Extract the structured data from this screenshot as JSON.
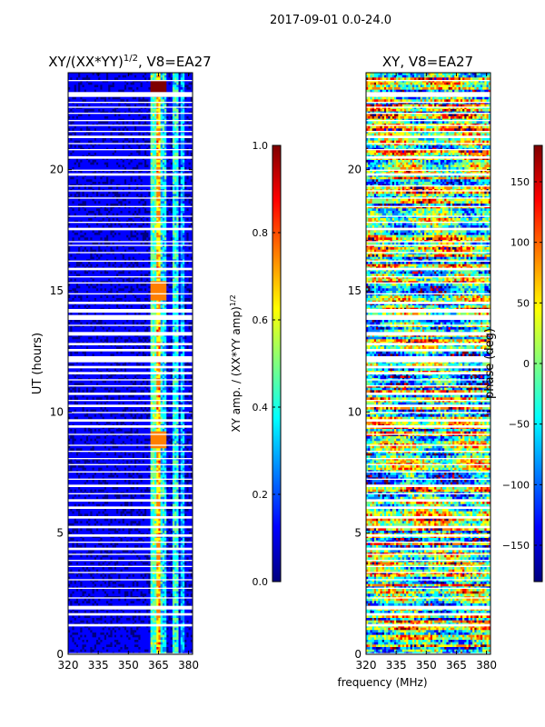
{
  "suptitle": "2017-09-01 0.0-24.0",
  "shared_xlabel": "frequency (MHz)",
  "colormap": "jet",
  "jet_colors": [
    "#00007f",
    "#0000ff",
    "#007fff",
    "#00ffff",
    "#7fff7f",
    "#ffff00",
    "#ff7f00",
    "#ff0000",
    "#7f0000"
  ],
  "gap_color": "#ffffff",
  "chart_data": [
    {
      "type": "heatmap",
      "title_main": "XY/(XX*YY)",
      "title_sup": "1/2",
      "title_tail": ", V8=EA27",
      "ylabel": "UT (hours)",
      "xlim": [
        320,
        382
      ],
      "ylim": [
        0,
        24
      ],
      "xticks": [
        320,
        335,
        350,
        365,
        380
      ],
      "yticks": [
        0,
        5,
        10,
        15,
        20
      ],
      "colorbar": {
        "label_main": "XY amp. / (XX*YY amp)",
        "label_sup": "1/2",
        "range": [
          0.0,
          1.0
        ],
        "ticks": [
          "0.0",
          "0.2",
          "0.4",
          "0.6",
          "0.8",
          "1.0"
        ],
        "tick_values": [
          0.0,
          0.2,
          0.4,
          0.6,
          0.8,
          1.0
        ]
      },
      "description_values": {
        "background_level": 0.05,
        "bright_bands_mhz": [
          [
            361,
            364
          ],
          [
            364,
            366
          ],
          [
            366,
            369
          ],
          [
            372,
            375
          ],
          [
            376,
            378
          ]
        ],
        "band_levels": [
          0.45,
          0.7,
          0.35,
          0.4,
          0.3
        ],
        "peak_levels": [
          [
            23.4,
            0.95
          ],
          [
            15.0,
            0.8
          ],
          [
            8.8,
            0.75
          ]
        ]
      }
    },
    {
      "type": "heatmap",
      "title": "XY, V8=EA27",
      "xlim": [
        320,
        382
      ],
      "ylim": [
        0,
        24
      ],
      "xticks": [
        320,
        335,
        350,
        365,
        380
      ],
      "yticks": [
        0,
        5,
        10,
        15,
        20
      ],
      "colorbar": {
        "label": "phase (deg)",
        "range": [
          -180,
          180
        ],
        "ticks": [
          "−150",
          "−100",
          "−50",
          "0",
          "50",
          "100",
          "150"
        ],
        "tick_values": [
          -150,
          -100,
          -50,
          0,
          50,
          100,
          150
        ]
      },
      "description_values": {
        "phase_distribution": "random across full range"
      }
    }
  ],
  "flagged_gaps_hours": [
    [
      0.0,
      0.05
    ],
    [
      1.15,
      1.25
    ],
    [
      1.6,
      1.7
    ],
    [
      1.85,
      2.0
    ],
    [
      2.3,
      2.35
    ],
    [
      2.7,
      2.75
    ],
    [
      3.05,
      3.1
    ],
    [
      3.35,
      3.4
    ],
    [
      3.6,
      3.65
    ],
    [
      3.85,
      3.9
    ],
    [
      4.1,
      4.15
    ],
    [
      4.3,
      4.4
    ],
    [
      4.6,
      4.65
    ],
    [
      4.85,
      4.95
    ],
    [
      5.2,
      5.3
    ],
    [
      5.6,
      5.7
    ],
    [
      6.0,
      6.1
    ],
    [
      6.3,
      6.4
    ],
    [
      6.6,
      6.65
    ],
    [
      6.9,
      7.0
    ],
    [
      7.2,
      7.25
    ],
    [
      7.5,
      7.55
    ],
    [
      7.8,
      7.85
    ],
    [
      8.05,
      8.1
    ],
    [
      8.35,
      8.4
    ],
    [
      8.6,
      8.65
    ],
    [
      9.05,
      9.1
    ],
    [
      9.35,
      9.45
    ],
    [
      9.6,
      9.7
    ],
    [
      9.95,
      10.0
    ],
    [
      10.2,
      10.3
    ],
    [
      10.45,
      10.5
    ],
    [
      10.7,
      10.8
    ],
    [
      11.05,
      11.1
    ],
    [
      11.3,
      11.35
    ],
    [
      11.55,
      11.65
    ],
    [
      11.8,
      11.9
    ],
    [
      12.05,
      12.3
    ],
    [
      12.5,
      12.6
    ],
    [
      12.75,
      12.85
    ],
    [
      13.15,
      13.3
    ],
    [
      13.55,
      13.6
    ],
    [
      13.8,
      14.0
    ],
    [
      14.1,
      14.25
    ],
    [
      14.45,
      14.55
    ],
    [
      14.85,
      14.9
    ],
    [
      15.3,
      15.35
    ],
    [
      15.55,
      15.6
    ],
    [
      15.85,
      15.95
    ],
    [
      16.2,
      16.25
    ],
    [
      16.55,
      16.6
    ],
    [
      16.85,
      16.9
    ],
    [
      17.0,
      17.05
    ],
    [
      17.5,
      17.6
    ],
    [
      17.8,
      17.85
    ],
    [
      18.05,
      18.1
    ],
    [
      18.45,
      18.5
    ],
    [
      18.8,
      18.85
    ],
    [
      19.1,
      19.15
    ],
    [
      19.3,
      19.35
    ],
    [
      19.75,
      19.85
    ],
    [
      19.95,
      20.0
    ],
    [
      20.45,
      20.55
    ],
    [
      20.8,
      20.85
    ],
    [
      21.05,
      21.1
    ],
    [
      21.3,
      21.4
    ],
    [
      21.55,
      21.6
    ],
    [
      21.8,
      21.85
    ],
    [
      22.0,
      22.05
    ],
    [
      22.3,
      22.35
    ],
    [
      22.55,
      22.6
    ],
    [
      22.75,
      22.8
    ],
    [
      23.0,
      23.2
    ],
    [
      23.65,
      23.7
    ]
  ]
}
